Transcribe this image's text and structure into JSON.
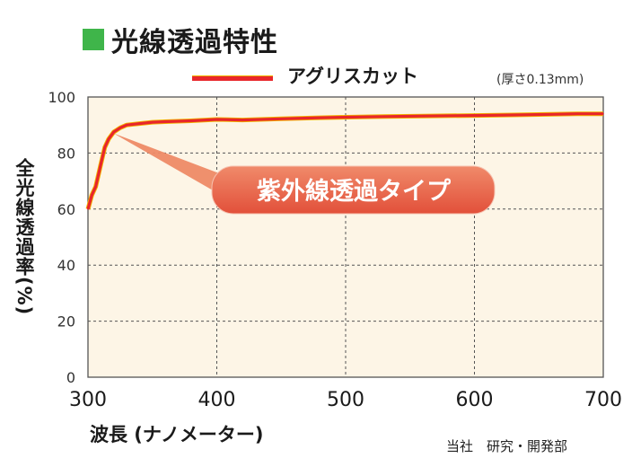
{
  "title": "光線透過特性",
  "legend": {
    "label": "アグリスカット",
    "note": "(厚さ0.13mm)"
  },
  "credit": "当社　研究・開発部",
  "colors": {
    "series": "#e8262b",
    "series_edge": "#f2b400",
    "title_square": "#3fb54a",
    "plot_bg": "#fdf5e6",
    "callout": "#e85a44"
  },
  "chart_data": {
    "type": "line",
    "title": "光線透過特性",
    "xlabel": "波長 (ナノメーター)",
    "ylabel": "全光線透過率(%)",
    "xlim": [
      300,
      700
    ],
    "ylim": [
      0,
      100
    ],
    "xticks": [
      300,
      400,
      500,
      600,
      700
    ],
    "yticks": [
      0,
      20,
      40,
      60,
      80,
      100
    ],
    "grid": true,
    "legend_position": "top",
    "series": [
      {
        "name": "アグリスカット",
        "x": [
          300,
          303,
          306,
          310,
          313,
          316,
          320,
          325,
          330,
          340,
          350,
          360,
          380,
          400,
          420,
          450,
          480,
          500,
          530,
          560,
          600,
          630,
          660,
          680,
          700
        ],
        "y": [
          60,
          65,
          68,
          76,
          82,
          85,
          87.5,
          89,
          90,
          90.5,
          91,
          91.2,
          91.5,
          92,
          91.8,
          92.2,
          92.6,
          92.8,
          93,
          93.2,
          93.4,
          93.6,
          93.8,
          94,
          94
        ]
      }
    ],
    "annotations": [
      {
        "text": "紫外線透過タイプ",
        "x": 310,
        "y": 84
      }
    ]
  }
}
